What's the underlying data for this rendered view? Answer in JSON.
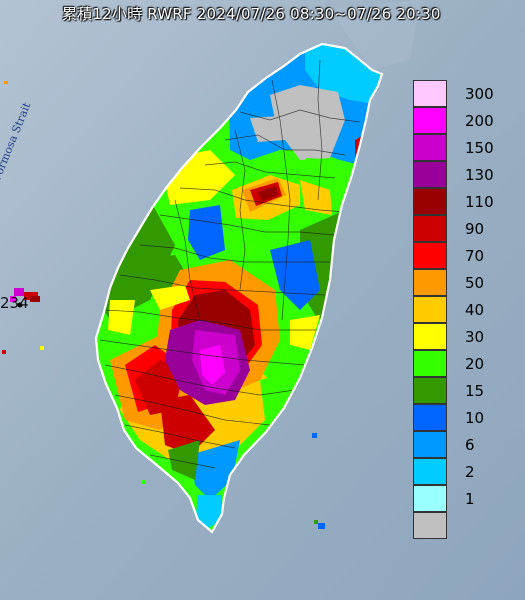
{
  "title": "累積12小時 RWRF 2024/07/26 08:30~07/26 20:30",
  "strait_label": "Formosa Strait",
  "station_value": "234",
  "legend": [
    {
      "value": "300",
      "color": "#ffc8ff"
    },
    {
      "value": "200",
      "color": "#ff00ff"
    },
    {
      "value": "150",
      "color": "#cc00cc"
    },
    {
      "value": "130",
      "color": "#990099"
    },
    {
      "value": "110",
      "color": "#990000"
    },
    {
      "value": "90",
      "color": "#cc0000"
    },
    {
      "value": "70",
      "color": "#ff0000"
    },
    {
      "value": "50",
      "color": "#ff9900"
    },
    {
      "value": "40",
      "color": "#ffcc00"
    },
    {
      "value": "30",
      "color": "#ffff00"
    },
    {
      "value": "20",
      "color": "#33ff00"
    },
    {
      "value": "15",
      "color": "#339900"
    },
    {
      "value": "10",
      "color": "#0066ff"
    },
    {
      "value": "6",
      "color": "#0099ff"
    },
    {
      "value": "2",
      "color": "#00ccff"
    },
    {
      "value": "1",
      "color": "#99ffff"
    },
    {
      "value": "",
      "color": "#c0c0c0"
    }
  ]
}
